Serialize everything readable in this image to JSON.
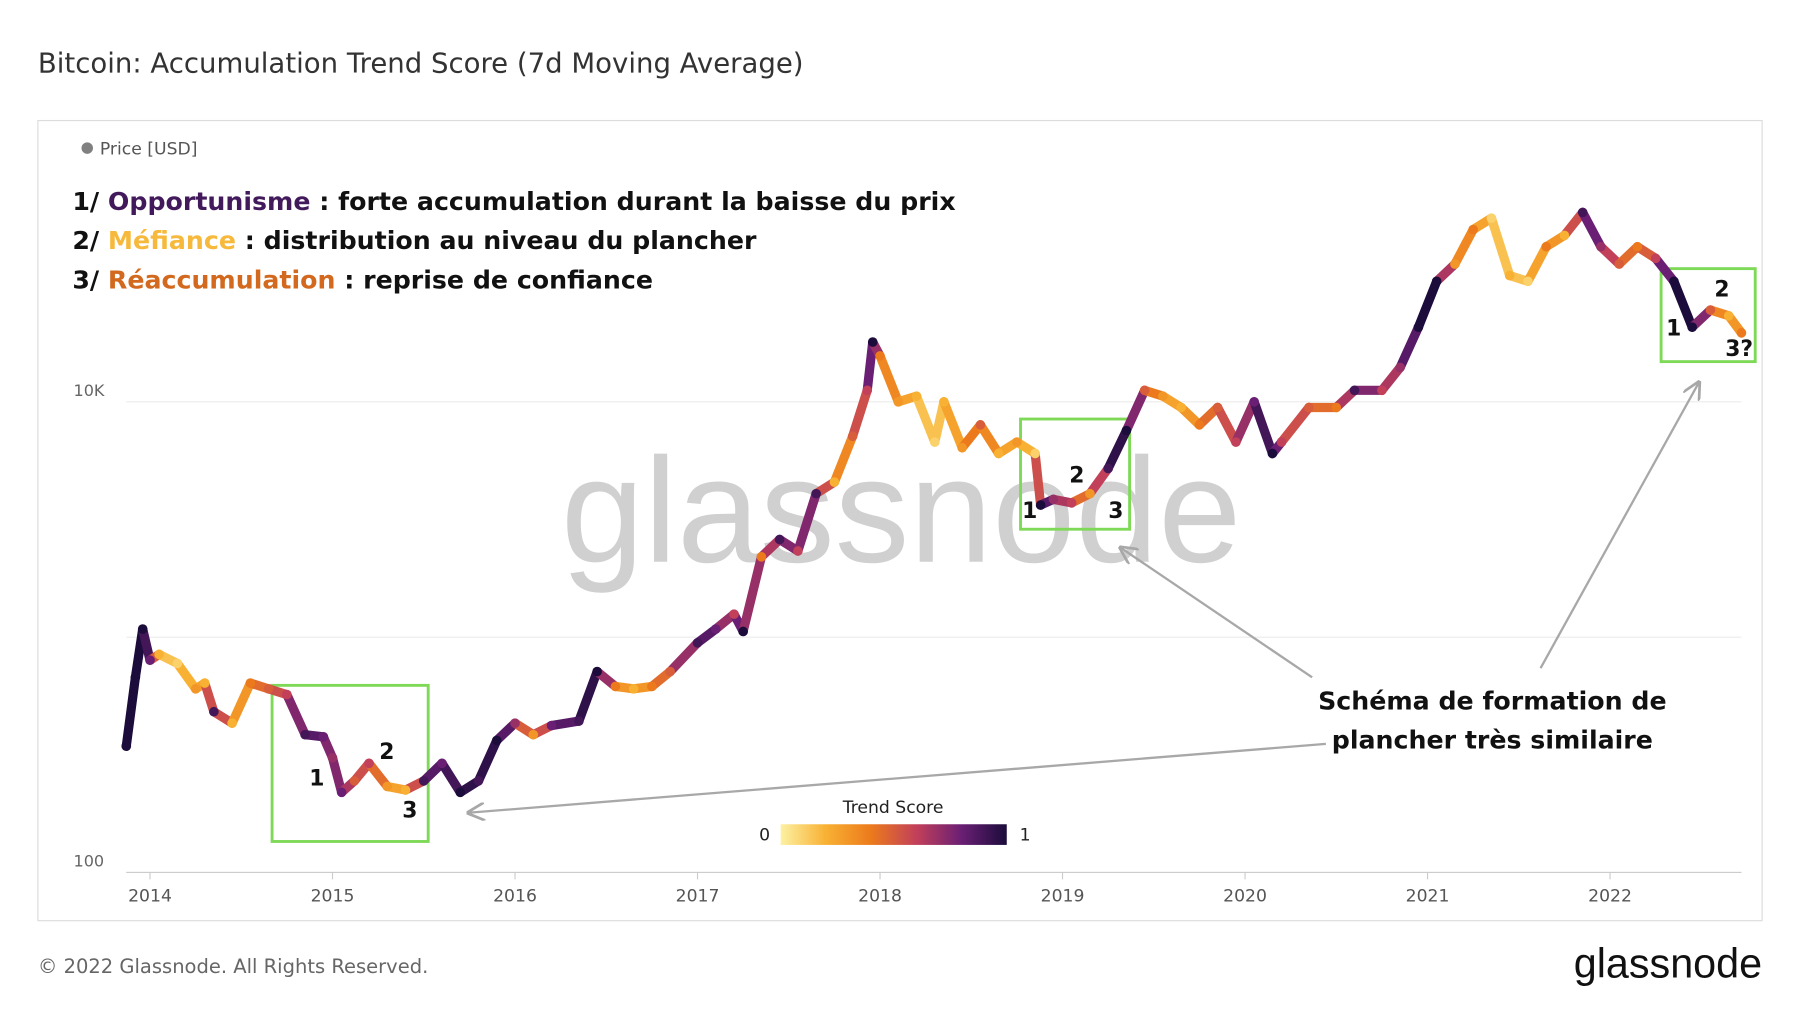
{
  "chart_data": {
    "type": "line",
    "title": "Bitcoin: Accumulation Trend Score (7d Moving Average)",
    "legend": "Price [USD]",
    "legend_color": "#808080",
    "notes": [
      [
        {
          "text": "1/ "
        },
        {
          "text": "Opportunisme",
          "color": "#421a5c"
        },
        {
          "text": " : forte accumulation durant la baisse du prix"
        }
      ],
      [
        {
          "text": "2/ "
        },
        {
          "text": "Méfiance",
          "color": "#f6b93b"
        },
        {
          "text": " : distribution au niveau du plancher"
        }
      ],
      [
        {
          "text": "3/ "
        },
        {
          "text": "Réaccumulation",
          "color": "#d2691e"
        },
        {
          "text": " : reprise de confiance"
        }
      ]
    ],
    "x": [
      2013.87,
      2013.92,
      2013.96,
      2014.0,
      2014.05,
      2014.15,
      2014.25,
      2014.3,
      2014.35,
      2014.45,
      2014.55,
      2014.65,
      2014.75,
      2014.85,
      2014.95,
      2015.0,
      2015.05,
      2015.12,
      2015.2,
      2015.3,
      2015.4,
      2015.5,
      2015.6,
      2015.7,
      2015.8,
      2015.9,
      2016.0,
      2016.1,
      2016.2,
      2016.35,
      2016.45,
      2016.55,
      2016.65,
      2016.75,
      2016.85,
      2017.0,
      2017.1,
      2017.2,
      2017.25,
      2017.35,
      2017.45,
      2017.55,
      2017.65,
      2017.75,
      2017.85,
      2017.93,
      2017.96,
      2018.0,
      2018.1,
      2018.2,
      2018.3,
      2018.35,
      2018.45,
      2018.55,
      2018.65,
      2018.75,
      2018.85,
      2018.88,
      2018.95,
      2019.05,
      2019.15,
      2019.25,
      2019.35,
      2019.45,
      2019.55,
      2019.65,
      2019.75,
      2019.85,
      2019.95,
      2020.05,
      2020.15,
      2020.2,
      2020.35,
      2020.5,
      2020.6,
      2020.75,
      2020.85,
      2020.95,
      2021.05,
      2021.15,
      2021.25,
      2021.35,
      2021.45,
      2021.55,
      2021.65,
      2021.75,
      2021.85,
      2021.95,
      2022.05,
      2022.15,
      2022.25,
      2022.35,
      2022.45,
      2022.55,
      2022.65,
      2022.72
    ],
    "values": [
      344,
      675,
      1082,
      798,
      845,
      773,
      603,
      638,
      482,
      431,
      638,
      603,
      570,
      385,
      377,
      307,
      219,
      245,
      291,
      232,
      224,
      245,
      291,
      219,
      245,
      364,
      431,
      385,
      421,
      440,
      714,
      617,
      603,
      617,
      714,
      946,
      1082,
      1252,
      1057,
      2195,
      2600,
      2323,
      4070,
      4557,
      7140,
      11190,
      17940,
      15670,
      10000,
      10570,
      6745,
      10000,
      6380,
      7980,
      6030,
      6745,
      6030,
      3640,
      3850,
      3720,
      4070,
      5210,
      7550,
      11190,
      10570,
      9460,
      7980,
      9460,
      6745,
      10000,
      6030,
      6745,
      9460,
      9460,
      11190,
      11190,
      14000,
      20750,
      32500,
      38500,
      53950,
      60300,
      34400,
      32500,
      45600,
      50950,
      63800,
      45600,
      38500,
      45600,
      40700,
      32500,
      20750,
      24550,
      23200,
      19630
    ],
    "scores": [
      1,
      1,
      1,
      0.8,
      0.2,
      0.1,
      0.3,
      0.2,
      0.9,
      0.2,
      0.4,
      0.5,
      0.6,
      0.9,
      0.8,
      0.7,
      0.8,
      0.5,
      0.6,
      0.3,
      0.2,
      0.9,
      0.8,
      1,
      0.9,
      1,
      0.7,
      0.3,
      0.8,
      0.9,
      1,
      0.4,
      0.2,
      0.4,
      0.5,
      0.9,
      0.8,
      0.6,
      1,
      0.4,
      0.9,
      0.6,
      0.9,
      0.2,
      0.5,
      0.6,
      1,
      0.4,
      0.3,
      0.2,
      0.1,
      0.2,
      0.3,
      0.5,
      0.2,
      0.3,
      0.1,
      1,
      0.7,
      0.6,
      0.3,
      0.9,
      1,
      0.5,
      0.3,
      0.2,
      0.4,
      0.5,
      0.6,
      0.8,
      1,
      0.6,
      0.5,
      0.4,
      0.9,
      0.6,
      0.7,
      1,
      1,
      0.3,
      0.4,
      0.1,
      0.2,
      0.1,
      0.4,
      0.2,
      0.9,
      0.7,
      0.5,
      0.4,
      0.6,
      1,
      1,
      0.5,
      0.2,
      0.4
    ],
    "xlim": [
      2013.87,
      2022.72
    ],
    "xticks": [
      2014,
      2015,
      2016,
      2017,
      2018,
      2019,
      2020,
      2021,
      2022
    ],
    "ylim": [
      100,
      100000
    ],
    "yticks": [
      100,
      {
        "value": 1000,
        "label": null
      },
      {
        "value": 10000,
        "label": "10K"
      }
    ],
    "log_y": true,
    "grid": true,
    "colorbar": {
      "title": "Trend Score",
      "ticks": [
        0,
        1
      ],
      "colors": [
        "#fcf1a3",
        "#f8b133",
        "#ec7a1c",
        "#c2405a",
        "#6a1f74",
        "#1b0c3b"
      ]
    },
    "box_labels": [
      [
        "1",
        "2",
        "3"
      ],
      [
        "1",
        "2",
        "3"
      ],
      [
        "1",
        "2",
        "3?"
      ]
    ],
    "callout": [
      "Schéma de formation de",
      "plancher très similaire"
    ],
    "watermark": "glassnode",
    "footer": "© 2022 Glassnode. All Rights Reserved.",
    "logo": "glassnode"
  }
}
